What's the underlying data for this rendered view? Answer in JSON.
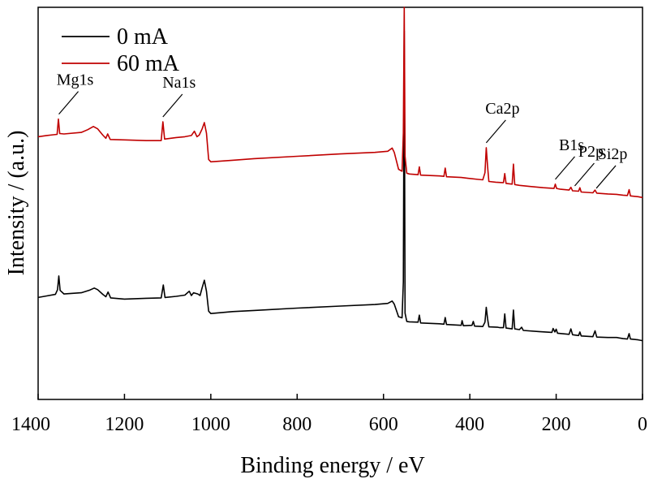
{
  "chart_data": {
    "type": "line",
    "title": "",
    "xlabel": "Binding energy / eV",
    "ylabel": "Intensity / (a.u.)",
    "xlim": [
      1400,
      0
    ],
    "x_reversed": true,
    "xticks": [
      1400,
      1200,
      1000,
      800,
      600,
      400,
      200,
      0
    ],
    "y_ticks_shown": false,
    "ylim": [
      0,
      100
    ],
    "grid": false,
    "legend_position": "top-left",
    "series": [
      {
        "name": "0 mA",
        "color": "#000000",
        "points": [
          [
            1400,
            26
          ],
          [
            1380,
            26.4
          ],
          [
            1360,
            26.8
          ],
          [
            1355,
            28
          ],
          [
            1352,
            31.5
          ],
          [
            1349,
            27.8
          ],
          [
            1340,
            26.9
          ],
          [
            1300,
            27.2
          ],
          [
            1280,
            27.9
          ],
          [
            1270,
            28.4
          ],
          [
            1262,
            28.0
          ],
          [
            1250,
            26.8
          ],
          [
            1243,
            26.2
          ],
          [
            1238,
            27.4
          ],
          [
            1232,
            25.9
          ],
          [
            1200,
            25.6
          ],
          [
            1150,
            25.8
          ],
          [
            1115,
            25.9
          ],
          [
            1110,
            29.2
          ],
          [
            1106,
            26.0
          ],
          [
            1080,
            26.3
          ],
          [
            1060,
            26.6
          ],
          [
            1050,
            27.6
          ],
          [
            1045,
            26.5
          ],
          [
            1040,
            27.2
          ],
          [
            1030,
            26.9
          ],
          [
            1025,
            26.5
          ],
          [
            1020,
            28.5
          ],
          [
            1015,
            30.4
          ],
          [
            1010,
            27.6
          ],
          [
            1005,
            22.5
          ],
          [
            1000,
            21.9
          ],
          [
            950,
            22.4
          ],
          [
            900,
            22.7
          ],
          [
            800,
            23.3
          ],
          [
            700,
            23.8
          ],
          [
            620,
            24.2
          ],
          [
            590,
            24.5
          ],
          [
            580,
            25.1
          ],
          [
            575,
            24.3
          ],
          [
            565,
            21.1
          ],
          [
            557,
            20.8
          ],
          [
            554,
            30
          ],
          [
            552,
            94
          ],
          [
            550,
            22
          ],
          [
            546,
            19.9
          ],
          [
            540,
            19.8
          ],
          [
            520,
            19.7
          ],
          [
            517,
            21.5
          ],
          [
            514,
            19.5
          ],
          [
            470,
            19.3
          ],
          [
            460,
            19.2
          ],
          [
            457,
            20.9
          ],
          [
            454,
            19.1
          ],
          [
            420,
            18.9
          ],
          [
            418,
            20.1
          ],
          [
            415,
            18.8
          ],
          [
            395,
            18.9
          ],
          [
            392,
            19.9
          ],
          [
            389,
            18.7
          ],
          [
            370,
            18.6
          ],
          [
            365,
            19.7
          ],
          [
            362,
            23.5
          ],
          [
            359,
            20.6
          ],
          [
            356,
            18.5
          ],
          [
            335,
            18.4
          ],
          [
            330,
            18.3
          ],
          [
            322,
            18.3
          ],
          [
            319,
            21.8
          ],
          [
            316,
            18.2
          ],
          [
            302,
            18.0
          ],
          [
            299,
            22.8
          ],
          [
            296,
            18.0
          ],
          [
            285,
            17.8
          ],
          [
            280,
            18.4
          ],
          [
            276,
            17.6
          ],
          [
            240,
            17.3
          ],
          [
            210,
            17.1
          ],
          [
            207,
            18.1
          ],
          [
            203,
            17.2
          ],
          [
            200,
            17.9
          ],
          [
            197,
            16.9
          ],
          [
            170,
            16.6
          ],
          [
            166,
            18.0
          ],
          [
            162,
            16.5
          ],
          [
            148,
            16.3
          ],
          [
            145,
            17.2
          ],
          [
            142,
            16.2
          ],
          [
            115,
            16.0
          ],
          [
            110,
            17.5
          ],
          [
            106,
            15.9
          ],
          [
            80,
            15.8
          ],
          [
            60,
            15.8
          ],
          [
            45,
            15.5
          ],
          [
            35,
            15.4
          ],
          [
            31,
            16.8
          ],
          [
            28,
            15.4
          ],
          [
            10,
            15.2
          ],
          [
            0,
            15.0
          ]
        ]
      },
      {
        "name": "60 mA",
        "color": "#c00000",
        "points": [
          [
            1400,
            67.0
          ],
          [
            1380,
            67.3
          ],
          [
            1365,
            67.5
          ],
          [
            1356,
            67.6
          ],
          [
            1353,
            71.5
          ],
          [
            1350,
            67.8
          ],
          [
            1340,
            67.7
          ],
          [
            1300,
            68.1
          ],
          [
            1285,
            68.8
          ],
          [
            1272,
            69.6
          ],
          [
            1262,
            69.0
          ],
          [
            1250,
            67.4
          ],
          [
            1243,
            66.6
          ],
          [
            1239,
            67.7
          ],
          [
            1233,
            66.3
          ],
          [
            1200,
            66.2
          ],
          [
            1150,
            66.0
          ],
          [
            1115,
            66.0
          ],
          [
            1111,
            70.8
          ],
          [
            1107,
            66.4
          ],
          [
            1080,
            66.8
          ],
          [
            1060,
            67.0
          ],
          [
            1045,
            67.3
          ],
          [
            1038,
            68.4
          ],
          [
            1032,
            67.0
          ],
          [
            1027,
            67.4
          ],
          [
            1020,
            69.0
          ],
          [
            1015,
            70.6
          ],
          [
            1010,
            67.9
          ],
          [
            1005,
            61.2
          ],
          [
            1000,
            60.6
          ],
          [
            950,
            61.0
          ],
          [
            900,
            61.4
          ],
          [
            800,
            62.0
          ],
          [
            700,
            62.6
          ],
          [
            620,
            63.0
          ],
          [
            590,
            63.3
          ],
          [
            580,
            64.1
          ],
          [
            575,
            63.0
          ],
          [
            565,
            58.7
          ],
          [
            557,
            58.2
          ],
          [
            554,
            68
          ],
          [
            552,
            105
          ],
          [
            550,
            62
          ],
          [
            546,
            57.7
          ],
          [
            540,
            57.5
          ],
          [
            520,
            57.3
          ],
          [
            517,
            59.3
          ],
          [
            514,
            57.2
          ],
          [
            470,
            57.0
          ],
          [
            460,
            56.9
          ],
          [
            457,
            59.0
          ],
          [
            454,
            56.8
          ],
          [
            420,
            56.6
          ],
          [
            405,
            56.4
          ],
          [
            380,
            56.1
          ],
          [
            370,
            56.0
          ],
          [
            365,
            57.8
          ],
          [
            362,
            64.2
          ],
          [
            359,
            59.5
          ],
          [
            356,
            55.6
          ],
          [
            340,
            55.4
          ],
          [
            325,
            55.3
          ],
          [
            322,
            55.3
          ],
          [
            319,
            57.6
          ],
          [
            316,
            55.1
          ],
          [
            302,
            54.9
          ],
          [
            299,
            60.0
          ],
          [
            296,
            54.8
          ],
          [
            285,
            54.6
          ],
          [
            260,
            54.3
          ],
          [
            230,
            54.0
          ],
          [
            205,
            53.8
          ],
          [
            202,
            54.9
          ],
          [
            199,
            53.8
          ],
          [
            190,
            53.6
          ],
          [
            170,
            53.4
          ],
          [
            166,
            54.1
          ],
          [
            162,
            53.2
          ],
          [
            148,
            53.1
          ],
          [
            145,
            54.0
          ],
          [
            142,
            52.9
          ],
          [
            115,
            52.7
          ],
          [
            110,
            53.4
          ],
          [
            106,
            52.6
          ],
          [
            80,
            52.4
          ],
          [
            60,
            52.3
          ],
          [
            45,
            52.1
          ],
          [
            35,
            52.0
          ],
          [
            31,
            53.5
          ],
          [
            28,
            51.9
          ],
          [
            10,
            51.7
          ],
          [
            0,
            51.5
          ]
        ]
      }
    ],
    "annotations": [
      {
        "text": "Mg1s",
        "x": 1352,
        "peak_series": "60 mA"
      },
      {
        "text": "Na1s",
        "x": 1111,
        "peak_series": "60 mA"
      },
      {
        "text": "Ca2p",
        "x": 362,
        "peak_series": "60 mA"
      },
      {
        "text": "B1s",
        "x": 202,
        "peak_series": "60 mA"
      },
      {
        "text": "P2p",
        "x": 157,
        "peak_series": "60 mA"
      },
      {
        "text": "Si2p",
        "x": 107,
        "peak_series": "60 mA"
      }
    ]
  }
}
